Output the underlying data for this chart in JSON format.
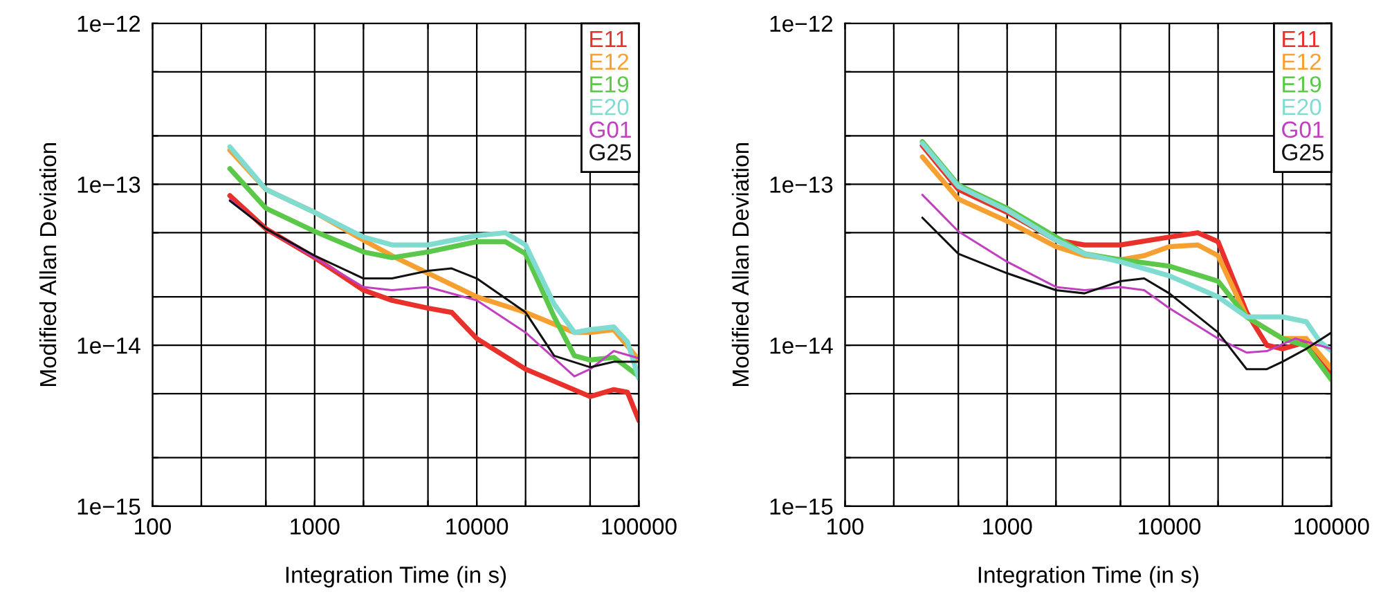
{
  "chart_data": [
    {
      "type": "line",
      "xlabel": "Integration Time (in s)",
      "ylabel": "Modified Allan Deviation",
      "log": "xy",
      "grid": true,
      "legend": "top right",
      "line_style": "solid",
      "marker": "none",
      "xlim": [
        100,
        100000
      ],
      "ylim": [
        1e-15,
        1e-12
      ],
      "xticks": [
        100,
        {
          "value": 200,
          "label": null
        },
        {
          "value": 500,
          "label": null
        },
        1000,
        {
          "value": 2000,
          "label": null
        },
        {
          "value": 5000,
          "label": null
        },
        10000,
        {
          "value": 20000,
          "label": null
        },
        {
          "value": 50000,
          "label": null
        },
        100000
      ],
      "yticks": [
        {
          "value": 1e-15,
          "label": "1e−15"
        },
        {
          "value": 2e-15,
          "label": null
        },
        {
          "value": 5e-15,
          "label": null
        },
        {
          "value": 1e-14,
          "label": "1e−14"
        },
        {
          "value": 2e-14,
          "label": null
        },
        {
          "value": 5e-14,
          "label": null
        },
        {
          "value": 1e-13,
          "label": "1e−13"
        },
        {
          "value": 2e-13,
          "label": null
        },
        {
          "value": 5e-13,
          "label": null
        },
        {
          "value": 1e-12,
          "label": "1e−12"
        }
      ],
      "series": [
        {
          "name": "E11",
          "color": "#e8312a",
          "x": [
            300,
            500,
            1000,
            2000,
            3000,
            5000,
            7000,
            10000,
            20000,
            50000,
            70000,
            85000,
            100000
          ],
          "values": [
            8.5e-14,
            5.3e-14,
            3.5e-14,
            2.2e-14,
            1.9e-14,
            1.7e-14,
            1.6e-14,
            1.1e-14,
            7.1e-15,
            4.8e-15,
            5.3e-15,
            5.1e-15,
            3.4e-15
          ]
        },
        {
          "name": "E12",
          "color": "#f5a030",
          "x": [
            300,
            500,
            1000,
            2000,
            3000,
            5000,
            10000,
            20000,
            40000,
            50000,
            70000,
            100000
          ],
          "values": [
            1.63e-13,
            9.3e-14,
            6.7e-14,
            4.5e-14,
            3.6e-14,
            2.8e-14,
            2e-14,
            1.6e-14,
            1.2e-14,
            1.2e-14,
            1.25e-14,
            8.1e-15
          ]
        },
        {
          "name": "E19",
          "color": "#5cc84a",
          "x": [
            300,
            500,
            1000,
            2000,
            3000,
            5000,
            10000,
            15000,
            20000,
            30000,
            40000,
            50000,
            70000,
            100000
          ],
          "values": [
            1.25e-13,
            7.1e-14,
            5.1e-14,
            3.8e-14,
            3.5e-14,
            3.8e-14,
            4.4e-14,
            4.4e-14,
            3.7e-14,
            1.5e-14,
            8.6e-15,
            8.1e-15,
            8.4e-15,
            6.4e-15
          ]
        },
        {
          "name": "E20",
          "color": "#80dcd0",
          "x": [
            300,
            500,
            1000,
            2000,
            3000,
            5000,
            10000,
            15000,
            20000,
            30000,
            40000,
            50000,
            70000,
            85000,
            100000
          ],
          "values": [
            1.71e-13,
            9.3e-14,
            6.7e-14,
            4.7e-14,
            4.2e-14,
            4.2e-14,
            4.8e-14,
            5e-14,
            4.2e-14,
            1.8e-14,
            1.2e-14,
            1.25e-14,
            1.3e-14,
            1.05e-14,
            6.2e-15
          ]
        },
        {
          "name": "G01",
          "color": "#c040c0",
          "x": [
            300,
            500,
            1000,
            2000,
            3000,
            5000,
            10000,
            20000,
            40000,
            50000,
            70000,
            100000
          ],
          "values": [
            8e-14,
            5.3e-14,
            3.5e-14,
            2.3e-14,
            2.2e-14,
            2.3e-14,
            1.9e-14,
            1.2e-14,
            6.4e-15,
            7.1e-15,
            9.2e-15,
            8.3e-15
          ]
        },
        {
          "name": "G25",
          "color": "#111111",
          "x": [
            300,
            500,
            1000,
            2000,
            3000,
            5000,
            7000,
            10000,
            20000,
            30000,
            50000,
            70000,
            100000
          ],
          "values": [
            7.9e-14,
            5.3e-14,
            3.6e-14,
            2.6e-14,
            2.6e-14,
            2.9e-14,
            3e-14,
            2.6e-14,
            1.6e-14,
            8.6e-15,
            7.3e-15,
            7.9e-15,
            7.9e-15
          ]
        }
      ]
    },
    {
      "type": "line",
      "xlabel": "Integration Time (in s)",
      "ylabel": "Modified Allan Deviation",
      "log": "xy",
      "grid": true,
      "legend": "top right",
      "line_style": "solid",
      "marker": "none",
      "xlim": [
        100,
        100000
      ],
      "ylim": [
        1e-15,
        1e-12
      ],
      "xticks": [
        100,
        {
          "value": 200,
          "label": null
        },
        {
          "value": 500,
          "label": null
        },
        1000,
        {
          "value": 2000,
          "label": null
        },
        {
          "value": 5000,
          "label": null
        },
        10000,
        {
          "value": 20000,
          "label": null
        },
        {
          "value": 50000,
          "label": null
        },
        100000
      ],
      "yticks": [
        {
          "value": 1e-15,
          "label": "1e−15"
        },
        {
          "value": 2e-15,
          "label": null
        },
        {
          "value": 5e-15,
          "label": null
        },
        {
          "value": 1e-14,
          "label": "1e−14"
        },
        {
          "value": 2e-14,
          "label": null
        },
        {
          "value": 5e-14,
          "label": null
        },
        {
          "value": 1e-13,
          "label": "1e−13"
        },
        {
          "value": 2e-13,
          "label": null
        },
        {
          "value": 5e-13,
          "label": null
        },
        {
          "value": 1e-12,
          "label": "1e−12"
        }
      ],
      "series": [
        {
          "name": "E11",
          "color": "#e8312a",
          "x": [
            300,
            500,
            1000,
            2000,
            3000,
            5000,
            10000,
            15000,
            20000,
            30000,
            40000,
            50000,
            70000,
            100000
          ],
          "values": [
            1.74e-13,
            9.3e-14,
            6.7e-14,
            4.5e-14,
            4.2e-14,
            4.2e-14,
            4.7e-14,
            5e-14,
            4.4e-14,
            1.6e-14,
            1e-14,
            9.5e-15,
            1.05e-14,
            6.8e-15
          ]
        },
        {
          "name": "E12",
          "color": "#f5a030",
          "x": [
            300,
            500,
            1000,
            2000,
            3000,
            5000,
            7000,
            10000,
            15000,
            20000,
            30000,
            50000,
            70000,
            100000
          ],
          "values": [
            1.48e-13,
            8.1e-14,
            5.9e-14,
            4.1e-14,
            3.6e-14,
            3.4e-14,
            3.6e-14,
            4.1e-14,
            4.2e-14,
            3.6e-14,
            1.5e-14,
            1.1e-14,
            1.1e-14,
            7.2e-15
          ]
        },
        {
          "name": "E19",
          "color": "#5cc84a",
          "x": [
            300,
            500,
            1000,
            2000,
            3000,
            5000,
            10000,
            20000,
            30000,
            50000,
            70000,
            100000
          ],
          "values": [
            1.84e-13,
            9.9e-14,
            7.1e-14,
            4.7e-14,
            3.7e-14,
            3.4e-14,
            3.1e-14,
            2.5e-14,
            1.5e-14,
            1.1e-14,
            9.9e-15,
            6.1e-15
          ]
        },
        {
          "name": "E20",
          "color": "#80dcd0",
          "x": [
            300,
            500,
            1000,
            2000,
            3000,
            5000,
            10000,
            20000,
            30000,
            50000,
            70000,
            85000,
            100000
          ],
          "values": [
            1.8e-13,
            9.7e-14,
            6.9e-14,
            4.5e-14,
            3.7e-14,
            3.3e-14,
            2.7e-14,
            2e-14,
            1.5e-14,
            1.5e-14,
            1.4e-14,
            1.05e-14,
            9.2e-15
          ]
        },
        {
          "name": "G01",
          "color": "#c040c0",
          "x": [
            300,
            500,
            1000,
            2000,
            3000,
            5000,
            7000,
            10000,
            20000,
            30000,
            40000,
            60000,
            100000
          ],
          "values": [
            8.6e-14,
            5.1e-14,
            3.3e-14,
            2.3e-14,
            2.2e-14,
            2.3e-14,
            2.2e-14,
            1.7e-14,
            1.1e-14,
            9e-15,
            9.2e-15,
            1.1e-14,
            9.5e-15
          ]
        },
        {
          "name": "G25",
          "color": "#111111",
          "x": [
            300,
            500,
            1000,
            2000,
            3000,
            5000,
            7000,
            10000,
            20000,
            30000,
            40000,
            50000,
            70000,
            100000
          ],
          "values": [
            6.2e-14,
            3.7e-14,
            2.8e-14,
            2.2e-14,
            2.1e-14,
            2.5e-14,
            2.6e-14,
            2.1e-14,
            1.2e-14,
            7.1e-15,
            7.1e-15,
            7.9e-15,
            9.5e-15,
            1.2e-14
          ]
        }
      ]
    }
  ]
}
